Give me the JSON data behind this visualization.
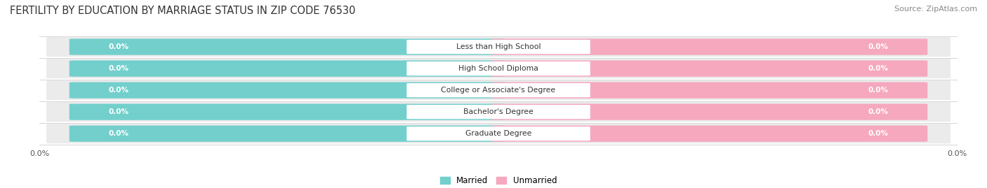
{
  "title": "FERTILITY BY EDUCATION BY MARRIAGE STATUS IN ZIP CODE 76530",
  "source": "Source: ZipAtlas.com",
  "categories": [
    "Less than High School",
    "High School Diploma",
    "College or Associate's Degree",
    "Bachelor's Degree",
    "Graduate Degree"
  ],
  "married_values": [
    0.0,
    0.0,
    0.0,
    0.0,
    0.0
  ],
  "unmarried_values": [
    0.0,
    0.0,
    0.0,
    0.0,
    0.0
  ],
  "married_color": "#72CFCC",
  "unmarried_color": "#F5A8BE",
  "row_bg_color": "#EBEBEB",
  "title_fontsize": 10.5,
  "source_fontsize": 8,
  "tick_label": "0.0%",
  "figsize": [
    14.06,
    2.69
  ],
  "dpi": 100
}
